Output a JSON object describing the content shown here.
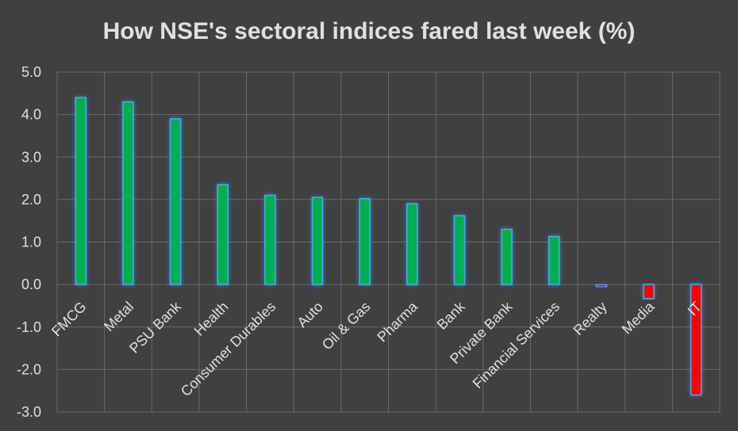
{
  "chart_data": {
    "type": "bar",
    "title": "How NSE's sectoral indices fared last week (%)",
    "xlabel": "",
    "ylabel": "",
    "ylim": [
      -3.0,
      5.0
    ],
    "yticks": [
      "5.0",
      "4.0",
      "3.0",
      "2.0",
      "1.0",
      "0.0",
      "-1.0",
      "-2.0",
      "-3.0"
    ],
    "ytick_values": [
      5,
      4,
      3,
      2,
      1,
      0,
      -1,
      -2,
      -3
    ],
    "grid": true,
    "categories": [
      "FMCG",
      "Metal",
      "PSU Bank",
      "Health",
      "Consumer Durables",
      "Auto",
      "Oil & Gas",
      "Pharma",
      "Bank",
      "Private Bank",
      "Financial Services",
      "Realty",
      "Media",
      "IT"
    ],
    "values": [
      4.4,
      4.3,
      3.9,
      2.35,
      2.1,
      2.05,
      2.02,
      1.9,
      1.62,
      1.3,
      1.13,
      -0.03,
      -0.33,
      -2.6
    ],
    "colors": {
      "positive": "#00b050",
      "negative": "#ff0000",
      "outline": "#4da6ff",
      "background": "#404040",
      "grid": "#6a6a6a",
      "text": "#e0e0e0"
    }
  }
}
